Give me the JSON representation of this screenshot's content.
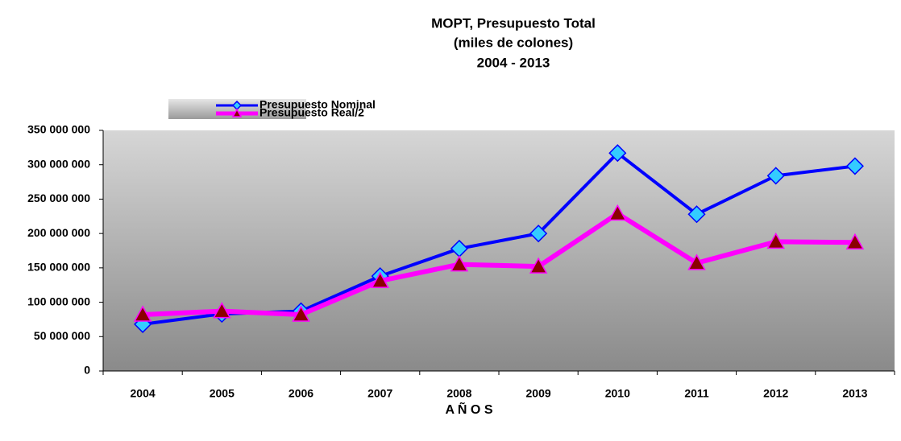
{
  "chart_data": {
    "type": "line",
    "title": [
      "MOPT, Presupuesto Total",
      "(miles de colones)",
      "2004 - 2013"
    ],
    "x_label": "A Ñ O S",
    "categories": [
      "2004",
      "2005",
      "2006",
      "2007",
      "2008",
      "2009",
      "2010",
      "2011",
      "2012",
      "2013"
    ],
    "series": [
      {
        "name": "Presupuesto Nominal",
        "color": "#0000ff",
        "marker": "diamond",
        "marker_color": "#33ccff",
        "values": [
          68000000,
          83000000,
          87000000,
          138000000,
          178000000,
          200000000,
          317000000,
          228000000,
          284000000,
          298000000
        ]
      },
      {
        "name": "Presupuesto Real/2",
        "color": "#ff00ff",
        "marker": "triangle",
        "marker_color": "#8b0000",
        "values": [
          82000000,
          87000000,
          82000000,
          131000000,
          155000000,
          152000000,
          229000000,
          157000000,
          188000000,
          187000000
        ]
      }
    ],
    "ylim": [
      0,
      350000000
    ],
    "yticks": [
      0,
      {
        "value": 50000000,
        "label": "50 000 000"
      },
      {
        "value": 100000000,
        "label": "100 000 000"
      },
      {
        "value": 150000000,
        "label": "150 000 000"
      },
      {
        "value": 200000000,
        "label": "200 000 000"
      },
      {
        "value": 250000000,
        "label": "250 000 000"
      },
      {
        "value": 300000000,
        "label": "300 000 000"
      },
      {
        "value": 350000000,
        "label": "350 000 000"
      }
    ],
    "legend": "top-left"
  }
}
